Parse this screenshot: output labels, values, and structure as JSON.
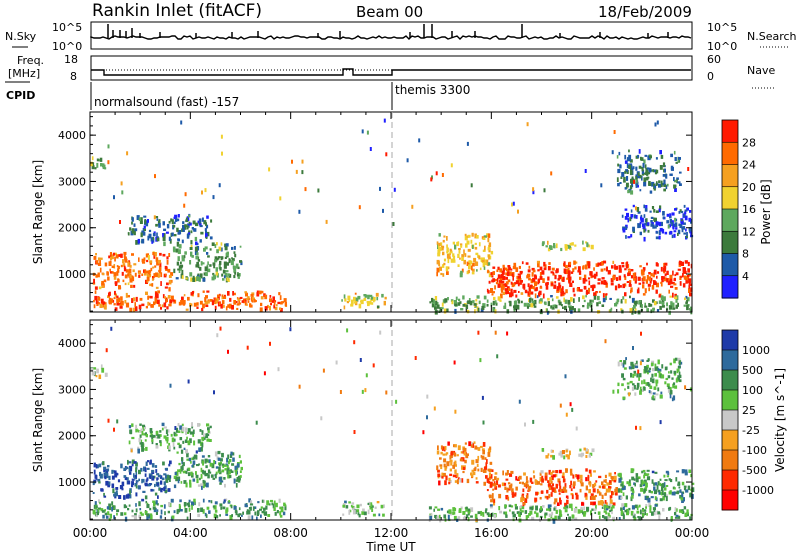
{
  "header": {
    "station": "Rankin Inlet (fitACF)",
    "beam": "Beam 00",
    "date": "18/Feb/2009"
  },
  "status_panels": {
    "nsky_label": "N.Sky",
    "nsky_ticks": [
      "10^5",
      "10^0"
    ],
    "nsearch_label": "N.Search",
    "nsearch_ticks": [
      "10^5",
      "10^0"
    ],
    "freq_label_1": "Freq.",
    "freq_label_2": "[MHz]",
    "freq_ticks": [
      "18",
      "8"
    ],
    "nave_label": "Nave",
    "nave_ticks": [
      "60",
      "0"
    ],
    "cpid_label": "CPID",
    "cpid_segments": [
      {
        "name": "normalsound (fast) -157",
        "start_hour": 0,
        "end_hour": 12
      },
      {
        "name": "themis 3300",
        "start_hour": 12,
        "end_hour": 24
      }
    ]
  },
  "chart_data": [
    {
      "type": "heatmap",
      "name": "power",
      "ylabel": "Slant Range [km]",
      "yticks": [
        "1000",
        "2000",
        "3000",
        "4000"
      ],
      "ylim": [
        180,
        4500
      ],
      "xlim": [
        0,
        24
      ],
      "colorbar_label": "Power [dB]",
      "colorbar_ticks": [
        "4",
        "8",
        "12",
        "16",
        "20",
        "24",
        "28"
      ],
      "colorbar_colors": [
        "#2020ff",
        "#1e5aa8",
        "#3c7a3c",
        "#5ea85e",
        "#f0d230",
        "#f5a020",
        "#ff6a00",
        "#ff1a00"
      ],
      "echo_regions": [
        {
          "t0": 0.1,
          "t1": 3.2,
          "r0": 700,
          "r1": 1500,
          "level": 0.78
        },
        {
          "t0": 0.1,
          "t1": 7.8,
          "r0": 250,
          "r1": 650,
          "level": 0.82
        },
        {
          "t0": 3.3,
          "t1": 6.0,
          "r0": 900,
          "r1": 1700,
          "level": 0.35
        },
        {
          "t0": 1.5,
          "t1": 4.8,
          "r0": 1700,
          "r1": 2300,
          "level": 0.22
        },
        {
          "t0": 10.0,
          "t1": 11.8,
          "r0": 300,
          "r1": 600,
          "level": 0.55
        },
        {
          "t0": 13.8,
          "t1": 16.0,
          "r0": 1000,
          "r1": 1900,
          "level": 0.62
        },
        {
          "t0": 15.8,
          "t1": 24.0,
          "r0": 550,
          "r1": 1300,
          "level": 0.92
        },
        {
          "t0": 13.5,
          "t1": 24.0,
          "r0": 200,
          "r1": 550,
          "level": 0.4
        },
        {
          "t0": 18.0,
          "t1": 20.0,
          "r0": 1550,
          "r1": 1750,
          "level": 0.5
        },
        {
          "t0": 21.0,
          "t1": 23.5,
          "r0": 2800,
          "r1": 3700,
          "level": 0.25
        },
        {
          "t0": 0.0,
          "t1": 0.6,
          "r0": 3300,
          "r1": 3600,
          "level": 0.45
        },
        {
          "t0": 21.2,
          "t1": 24.0,
          "r0": 1800,
          "r1": 2500,
          "level": 0.15
        }
      ]
    },
    {
      "type": "heatmap",
      "name": "velocity",
      "ylabel": "Slant Range [km]",
      "xlabel": "Time UT",
      "yticks": [
        "1000",
        "2000",
        "3000",
        "4000"
      ],
      "xticks": [
        "00:00",
        "04:00",
        "08:00",
        "12:00",
        "16:00",
        "20:00",
        "00:00"
      ],
      "ylim": [
        180,
        4500
      ],
      "xlim": [
        0,
        24
      ],
      "colorbar_label": "Velocity [m s^-1]",
      "colorbar_ticks": [
        "1000",
        "500",
        "100",
        "25",
        "-25",
        "-100",
        "-500",
        "-1000"
      ],
      "colorbar_colors": [
        "#1e3aa8",
        "#2e6a9c",
        "#3c8c4c",
        "#5cc03c",
        "#c8c8c8",
        "#f5a020",
        "#f07a10",
        "#ff2a00",
        "#ff0000"
      ],
      "echo_regions": [
        {
          "t0": 0.1,
          "t1": 3.2,
          "r0": 700,
          "r1": 1500,
          "level": 0.12
        },
        {
          "t0": 0.1,
          "t1": 7.8,
          "r0": 250,
          "r1": 650,
          "level": 0.3
        },
        {
          "t0": 3.3,
          "t1": 6.0,
          "r0": 900,
          "r1": 1700,
          "level": 0.3
        },
        {
          "t0": 1.5,
          "t1": 4.8,
          "r0": 1700,
          "r1": 2300,
          "level": 0.35
        },
        {
          "t0": 10.0,
          "t1": 11.8,
          "r0": 300,
          "r1": 600,
          "level": 0.38
        },
        {
          "t0": 13.8,
          "t1": 16.0,
          "r0": 1000,
          "r1": 1900,
          "level": 0.72
        },
        {
          "t0": 15.8,
          "t1": 21.0,
          "r0": 550,
          "r1": 1300,
          "level": 0.75
        },
        {
          "t0": 21.0,
          "t1": 24.0,
          "r0": 650,
          "r1": 1300,
          "level": 0.3
        },
        {
          "t0": 13.5,
          "t1": 24.0,
          "r0": 200,
          "r1": 550,
          "level": 0.35
        },
        {
          "t0": 18.0,
          "t1": 20.0,
          "r0": 1550,
          "r1": 1750,
          "level": 0.55
        },
        {
          "t0": 21.0,
          "t1": 23.5,
          "r0": 2800,
          "r1": 3700,
          "level": 0.33
        },
        {
          "t0": 0.0,
          "t1": 0.6,
          "r0": 3300,
          "r1": 3600,
          "level": 0.4
        }
      ]
    }
  ]
}
